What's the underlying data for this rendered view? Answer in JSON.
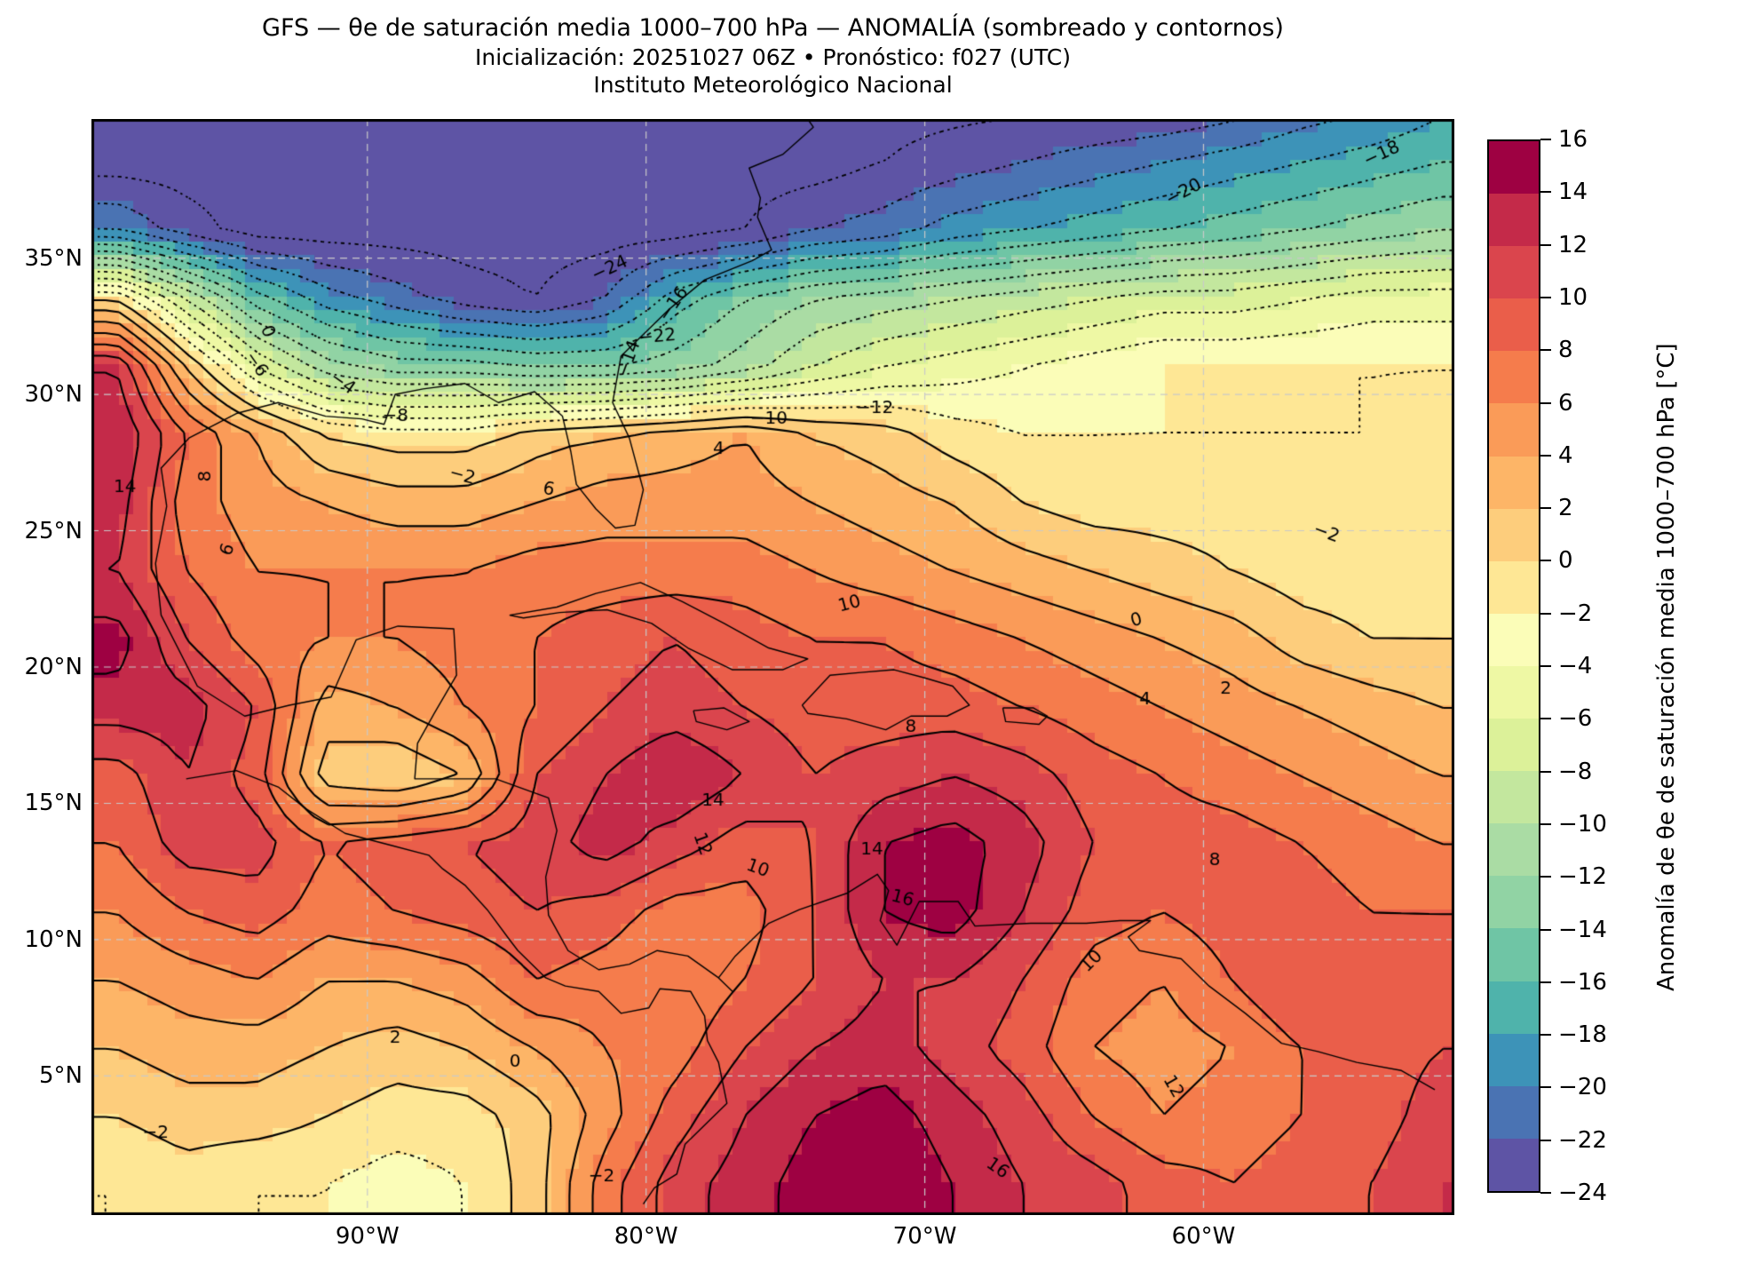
{
  "title": {
    "line1": "GFS — θe de saturación media 1000–700 hPa — ANOMALÍA (sombreado y contornos)",
    "line2": "Inicialización: 20251027 06Z   •   Pronóstico: f027 (UTC)",
    "line3": "Instituto Meteorológico Nacional"
  },
  "axes": {
    "lat_ticks": [
      {
        "label": "35°N",
        "value": 35
      },
      {
        "label": "30°N",
        "value": 30
      },
      {
        "label": "25°N",
        "value": 25
      },
      {
        "label": "20°N",
        "value": 20
      },
      {
        "label": "15°N",
        "value": 15
      },
      {
        "label": "10°N",
        "value": 10
      },
      {
        "label": "5°N",
        "value": 5
      }
    ],
    "lon_ticks": [
      {
        "label": "90°W",
        "value": -90
      },
      {
        "label": "80°W",
        "value": -80
      },
      {
        "label": "70°W",
        "value": -70
      },
      {
        "label": "60°W",
        "value": -60
      }
    ]
  },
  "colorbar": {
    "label": "Anomalía de θe de saturación media 1000–700 hPa [°C]",
    "min": -24,
    "max": 16,
    "step": 2,
    "tick_labels": [
      "16",
      "14",
      "12",
      "10",
      "8",
      "6",
      "4",
      "2",
      "0",
      "−2",
      "−4",
      "−6",
      "−8",
      "−10",
      "−12",
      "−14",
      "−16",
      "−18",
      "−20",
      "−22",
      "−24"
    ],
    "band_colors_min_to_max": [
      "#5e54a5",
      "#4a73b3",
      "#3d93b8",
      "#4fb3ab",
      "#6fc5a5",
      "#91d3a4",
      "#aadca4",
      "#c3e79e",
      "#dcf199",
      "#eef8a4",
      "#fbfdb8",
      "#fee795",
      "#fdcd7c",
      "#fdb567",
      "#fa9b58",
      "#f57c4c",
      "#ea5e4a",
      "#da454d",
      "#c42a49",
      "#9e0142"
    ]
  },
  "chart_data": {
    "type": "heatmap",
    "subtype": "filled-contour-geographic-map",
    "title": "GFS — θe de saturación media 1000–700 hPa — ANOMALÍA (sombreado y contornos)",
    "units": "°C",
    "extent": {
      "lon_min": -99.9,
      "lon_max": -51.0,
      "lat_min": -0.1,
      "lat_max": 40.1
    },
    "shading": "discrete 2°C bands, Spectral reversed",
    "contours": {
      "min": -24,
      "max": 16,
      "step": 2,
      "negative_style": "dotted",
      "nonnegative_style": "solid"
    },
    "gridlines": {
      "lons": [
        -90,
        -80,
        -70,
        -60
      ],
      "lats": [
        5,
        10,
        15,
        20,
        25,
        30,
        35
      ],
      "style": "dashed light gray"
    },
    "lons": [
      -99,
      -96.5,
      -94,
      -91.5,
      -89,
      -86.5,
      -84,
      -81.5,
      -79,
      -76.5,
      -74,
      -71.5,
      -69,
      -66.5,
      -64,
      -61.5,
      -59,
      -56.5,
      -54,
      -51.5
    ],
    "lats": [
      41,
      38.5,
      36,
      33.5,
      31,
      28.5,
      26,
      23.5,
      21,
      18.5,
      16,
      13.5,
      11,
      8.5,
      6,
      3.5,
      1
    ],
    "values": [
      [
        -25,
        -25,
        -25,
        -25,
        -25,
        -25,
        -25,
        -25,
        -25,
        -25,
        -25,
        -25,
        -25,
        -25,
        -25,
        -25,
        -24,
        -22,
        -21,
        -19
      ],
      [
        -25,
        -25,
        -25,
        -25,
        -25,
        -25,
        -25,
        -25,
        -25,
        -25,
        -25,
        -24,
        -23,
        -22,
        -21,
        -20,
        -19,
        -18,
        -17,
        -16
      ],
      [
        -20,
        -23,
        -25,
        -25,
        -25,
        -25,
        -25,
        -25,
        -25,
        -24,
        -22,
        -21,
        -19,
        -18,
        -17,
        -16,
        -15,
        -14,
        -13,
        -12
      ],
      [
        0,
        -8,
        -15,
        -19,
        -21,
        -23,
        -24,
        -22,
        -17,
        -14,
        -12,
        -11,
        -10,
        -9,
        -8,
        -7,
        -7,
        -6,
        -5,
        -5
      ],
      [
        12,
        2,
        -6,
        -11,
        -13,
        -13,
        -14,
        -14,
        -13,
        -11,
        -8,
        -6,
        -5,
        -4,
        -3,
        -2,
        -2,
        -2,
        -2,
        -2
      ],
      [
        14,
        8,
        4,
        0,
        -1,
        -1,
        1,
        2,
        3,
        4,
        2,
        1,
        -1,
        -2,
        -2,
        -2,
        -2,
        -2,
        -2,
        -1
      ],
      [
        13,
        7,
        5,
        4,
        3,
        3,
        4,
        5,
        5,
        5,
        4,
        3,
        2,
        0,
        -1,
        -1,
        -1,
        -1,
        -1,
        -1
      ],
      [
        12,
        8,
        6,
        6,
        6,
        6,
        7,
        7,
        7,
        7,
        6,
        5,
        4,
        3,
        2,
        1,
        0,
        -1,
        -1,
        -1
      ],
      [
        15,
        10,
        7,
        6,
        6,
        7,
        8,
        9,
        10,
        9,
        8,
        8,
        7,
        6,
        5,
        4,
        3,
        1,
        0,
        0
      ],
      [
        13,
        13,
        10,
        3,
        4,
        6,
        8,
        10,
        11,
        10,
        9,
        9,
        9,
        8,
        7,
        6,
        5,
        4,
        3,
        2
      ],
      [
        9,
        12,
        9,
        1,
        0,
        2,
        10,
        12,
        14,
        12,
        10,
        11,
        12,
        11,
        9,
        8,
        7,
        6,
        5,
        4
      ],
      [
        8,
        11,
        11,
        8,
        9,
        10,
        11,
        13,
        11,
        9,
        10,
        14,
        15,
        13,
        10,
        9,
        9,
        8,
        7,
        6
      ],
      [
        6,
        8,
        9,
        7,
        8,
        9,
        10,
        9,
        7,
        7,
        10,
        14,
        15,
        12,
        9,
        8,
        9,
        9,
        8,
        8
      ],
      [
        4,
        5,
        6,
        4,
        4,
        5,
        8,
        7,
        6,
        8,
        10,
        12,
        12,
        10,
        7,
        6,
        8,
        10,
        9,
        9
      ],
      [
        2,
        3,
        3,
        2,
        1,
        2,
        4,
        6,
        7,
        10,
        12,
        13,
        11,
        9,
        6,
        5,
        6,
        8,
        9,
        10
      ],
      [
        0,
        1,
        1,
        0,
        -1,
        -1,
        1,
        5,
        9,
        12,
        14,
        15,
        13,
        11,
        8,
        6,
        7,
        8,
        9,
        11
      ],
      [
        -2,
        -1,
        -2,
        -2,
        -3,
        -2,
        1,
        7,
        11,
        13,
        15,
        16,
        14,
        12,
        11,
        9,
        8,
        9,
        10,
        12
      ]
    ],
    "contour_label_annotations": [
      {
        "t": "−24",
        "lon": -81.3,
        "lat": 34.6,
        "rot": 25
      },
      {
        "t": "−22",
        "lon": -79.6,
        "lat": 32.1,
        "rot": 5
      },
      {
        "t": "−20",
        "lon": -60.7,
        "lat": 37.4,
        "rot": 28
      },
      {
        "t": "−18",
        "lon": -53.6,
        "lat": 38.8,
        "rot": 25
      },
      {
        "t": "−16",
        "lon": -79.0,
        "lat": 33.3,
        "rot": 55
      },
      {
        "t": "−14",
        "lon": -80.6,
        "lat": 31.3,
        "rot": 70
      },
      {
        "t": "−12",
        "lon": -71.8,
        "lat": 29.5,
        "rot": 0
      },
      {
        "t": "−10",
        "lon": -75.6,
        "lat": 29.1,
        "rot": 0
      },
      {
        "t": "−8",
        "lon": -89.0,
        "lat": 29.2,
        "rot": 0
      },
      {
        "t": "−6",
        "lon": -94.0,
        "lat": 31.1,
        "rot": -55
      },
      {
        "t": "−4",
        "lon": -90.9,
        "lat": 30.4,
        "rot": -35
      },
      {
        "t": "−2",
        "lon": -86.6,
        "lat": 27.0,
        "rot": -15
      },
      {
        "t": "−2",
        "lon": -55.6,
        "lat": 24.9,
        "rot": -20
      },
      {
        "t": "−2",
        "lon": -97.6,
        "lat": 2.9,
        "rot": 0
      },
      {
        "t": "−2",
        "lon": -81.6,
        "lat": 1.3,
        "rot": 0
      },
      {
        "t": "0",
        "lon": -93.6,
        "lat": 32.3,
        "rot": -70
      },
      {
        "t": "0",
        "lon": -62.4,
        "lat": 21.7,
        "rot": 15
      },
      {
        "t": "0",
        "lon": -84.7,
        "lat": 5.5,
        "rot": 0
      },
      {
        "t": "2",
        "lon": -59.2,
        "lat": 19.2,
        "rot": 0
      },
      {
        "t": "2",
        "lon": -89.0,
        "lat": 6.4,
        "rot": 0
      },
      {
        "t": "4",
        "lon": -77.4,
        "lat": 28.0,
        "rot": 0
      },
      {
        "t": "4",
        "lon": -62.1,
        "lat": 18.8,
        "rot": 0
      },
      {
        "t": "6",
        "lon": -83.5,
        "lat": 26.5,
        "rot": -10
      },
      {
        "t": "6",
        "lon": -95.0,
        "lat": 24.3,
        "rot": 70
      },
      {
        "t": "8",
        "lon": -95.8,
        "lat": 27.0,
        "rot": 90
      },
      {
        "t": "8",
        "lon": -70.5,
        "lat": 17.8,
        "rot": 0
      },
      {
        "t": "8",
        "lon": -59.6,
        "lat": 12.9,
        "rot": 0
      },
      {
        "t": "10",
        "lon": -72.7,
        "lat": 22.3,
        "rot": 15
      },
      {
        "t": "10",
        "lon": -76.0,
        "lat": 12.6,
        "rot": -20
      },
      {
        "t": "10",
        "lon": -64.0,
        "lat": 9.2,
        "rot": 45
      },
      {
        "t": "12",
        "lon": -78.0,
        "lat": 13.5,
        "rot": -70
      },
      {
        "t": "12",
        "lon": -61.1,
        "lat": 4.6,
        "rot": -60
      },
      {
        "t": "14",
        "lon": -98.7,
        "lat": 26.6,
        "rot": 0
      },
      {
        "t": "14",
        "lon": -77.6,
        "lat": 15.1,
        "rot": 0
      },
      {
        "t": "14",
        "lon": -71.9,
        "lat": 13.3,
        "rot": 0
      },
      {
        "t": "16",
        "lon": -70.8,
        "lat": 11.5,
        "rot": -15
      },
      {
        "t": "16",
        "lon": -67.4,
        "lat": 1.6,
        "rot": -35
      }
    ],
    "basemap_coastlines": [
      [
        [
          -97.2,
          25.9
        ],
        [
          -97.4,
          27.3
        ],
        [
          -96.4,
          28.4
        ],
        [
          -94.7,
          29.3
        ],
        [
          -93.2,
          29.7
        ],
        [
          -91.5,
          29.2
        ],
        [
          -90.2,
          29.1
        ],
        [
          -89.4,
          28.9
        ],
        [
          -89.0,
          30.0
        ],
        [
          -88.0,
          30.2
        ],
        [
          -86.5,
          30.4
        ],
        [
          -85.3,
          29.7
        ],
        [
          -84.0,
          30.1
        ],
        [
          -83.0,
          29.2
        ],
        [
          -82.7,
          27.9
        ],
        [
          -82.5,
          26.7
        ],
        [
          -81.8,
          25.8
        ],
        [
          -81.1,
          25.1
        ],
        [
          -80.4,
          25.2
        ],
        [
          -80.1,
          26.5
        ],
        [
          -80.6,
          28.4
        ],
        [
          -81.2,
          29.7
        ],
        [
          -80.9,
          31.4
        ],
        [
          -79.2,
          33.1
        ],
        [
          -77.9,
          34.2
        ],
        [
          -76.2,
          34.9
        ],
        [
          -75.5,
          35.3
        ],
        [
          -76.0,
          36.5
        ],
        [
          -75.9,
          37.2
        ],
        [
          -76.3,
          38.3
        ],
        [
          -75.1,
          38.8
        ],
        [
          -74.0,
          39.8
        ],
        [
          -74.2,
          40.1
        ]
      ],
      [
        [
          -97.2,
          25.9
        ],
        [
          -97.6,
          23.8
        ],
        [
          -97.4,
          21.9
        ],
        [
          -96.1,
          19.3
        ],
        [
          -94.4,
          18.2
        ],
        [
          -92.8,
          18.6
        ],
        [
          -91.3,
          18.9
        ],
        [
          -90.4,
          21.0
        ],
        [
          -88.9,
          21.5
        ],
        [
          -86.9,
          21.4
        ],
        [
          -86.8,
          19.7
        ],
        [
          -87.6,
          18.3
        ],
        [
          -88.2,
          17.2
        ],
        [
          -88.3,
          15.9
        ],
        [
          -87.0,
          15.9
        ],
        [
          -85.4,
          15.9
        ],
        [
          -83.5,
          15.2
        ],
        [
          -83.2,
          14.0
        ],
        [
          -83.6,
          12.3
        ],
        [
          -83.5,
          10.9
        ],
        [
          -82.8,
          9.6
        ],
        [
          -81.7,
          8.9
        ],
        [
          -80.6,
          9.1
        ],
        [
          -79.6,
          9.6
        ],
        [
          -78.5,
          9.4
        ],
        [
          -77.4,
          8.6
        ],
        [
          -76.9,
          8.1
        ]
      ],
      [
        [
          -77.4,
          8.6
        ],
        [
          -76.8,
          9.4
        ],
        [
          -75.6,
          10.6
        ],
        [
          -74.5,
          11.1
        ],
        [
          -72.8,
          11.7
        ],
        [
          -71.7,
          12.4
        ],
        [
          -71.3,
          11.8
        ],
        [
          -71.6,
          10.7
        ],
        [
          -71.0,
          9.8
        ],
        [
          -70.2,
          11.4
        ],
        [
          -68.8,
          11.4
        ],
        [
          -68.2,
          10.5
        ],
        [
          -66.2,
          10.6
        ],
        [
          -64.2,
          10.6
        ],
        [
          -63.0,
          10.7
        ],
        [
          -61.9,
          10.7
        ],
        [
          -62.7,
          10.1
        ],
        [
          -62.3,
          9.6
        ],
        [
          -60.8,
          9.3
        ],
        [
          -59.8,
          8.3
        ],
        [
          -58.5,
          7.3
        ],
        [
          -57.2,
          6.2
        ],
        [
          -55.9,
          5.9
        ],
        [
          -54.5,
          5.5
        ],
        [
          -52.9,
          5.2
        ],
        [
          -51.7,
          4.5
        ]
      ],
      [
        [
          -96.5,
          15.9
        ],
        [
          -94.7,
          16.2
        ],
        [
          -93.2,
          15.6
        ],
        [
          -92.2,
          14.8
        ],
        [
          -90.8,
          13.9
        ],
        [
          -89.3,
          13.5
        ],
        [
          -87.8,
          13.1
        ],
        [
          -87.3,
          12.6
        ],
        [
          -86.5,
          12.0
        ],
        [
          -85.7,
          11.1
        ],
        [
          -84.9,
          10.0
        ],
        [
          -84.6,
          9.6
        ],
        [
          -83.6,
          8.6
        ],
        [
          -82.9,
          8.3
        ],
        [
          -81.7,
          8.1
        ],
        [
          -80.9,
          7.3
        ],
        [
          -79.9,
          7.5
        ],
        [
          -79.5,
          8.2
        ],
        [
          -78.4,
          8.1
        ],
        [
          -77.9,
          7.2
        ],
        [
          -77.8,
          6.3
        ],
        [
          -77.4,
          5.5
        ],
        [
          -77.1,
          4.0
        ],
        [
          -78.6,
          2.5
        ],
        [
          -78.9,
          1.4
        ],
        [
          -79.7,
          0.9
        ],
        [
          -80.1,
          0.3
        ]
      ],
      [
        [
          -84.9,
          21.9
        ],
        [
          -83.2,
          22.2
        ],
        [
          -81.8,
          22.7
        ],
        [
          -80.2,
          23.1
        ],
        [
          -78.7,
          22.4
        ],
        [
          -77.2,
          21.6
        ],
        [
          -75.6,
          20.7
        ],
        [
          -74.2,
          20.3
        ],
        [
          -75.1,
          19.9
        ],
        [
          -76.9,
          19.9
        ],
        [
          -78.5,
          20.7
        ],
        [
          -79.8,
          21.6
        ],
        [
          -81.4,
          22.1
        ],
        [
          -83.1,
          22.0
        ],
        [
          -84.4,
          21.8
        ],
        [
          -84.9,
          21.9
        ]
      ],
      [
        [
          -74.4,
          18.6
        ],
        [
          -73.4,
          19.7
        ],
        [
          -72.3,
          19.8
        ],
        [
          -71.1,
          19.9
        ],
        [
          -70.0,
          19.6
        ],
        [
          -69.0,
          19.3
        ],
        [
          -68.4,
          18.6
        ],
        [
          -69.2,
          18.2
        ],
        [
          -70.5,
          18.2
        ],
        [
          -71.4,
          17.7
        ],
        [
          -72.8,
          18.1
        ],
        [
          -74.2,
          18.3
        ],
        [
          -74.4,
          18.6
        ]
      ],
      [
        [
          -78.3,
          18.4
        ],
        [
          -77.2,
          18.5
        ],
        [
          -76.3,
          18.0
        ],
        [
          -77.1,
          17.7
        ],
        [
          -78.2,
          18.0
        ],
        [
          -78.3,
          18.4
        ]
      ],
      [
        [
          -67.2,
          18.5
        ],
        [
          -66.1,
          18.5
        ],
        [
          -65.6,
          18.2
        ],
        [
          -65.9,
          17.9
        ],
        [
          -67.1,
          18.0
        ],
        [
          -67.2,
          18.5
        ]
      ]
    ]
  }
}
